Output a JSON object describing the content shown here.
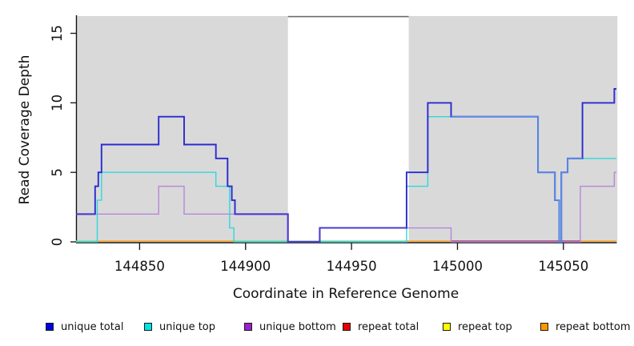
{
  "chart_data": {
    "type": "line",
    "step": true,
    "title": "",
    "xlabel": "Coordinate in Reference Genome",
    "ylabel": "Read Coverage Depth",
    "xlim": [
      144820,
      145075
    ],
    "ylim": [
      0,
      16.3
    ],
    "x_ticks": [
      144850,
      144900,
      144950,
      145000,
      145050
    ],
    "y_ticks": [
      0,
      5,
      10,
      15
    ],
    "grid": false,
    "legend_position": "bottom",
    "shaded_regions": [
      {
        "from": 144820.5,
        "to": 144920,
        "color": "#d9d9d9"
      },
      {
        "from": 144977,
        "to": 145075.5,
        "color": "#d9d9d9"
      }
    ],
    "gap_top_edge": {
      "from": 144920,
      "to": 144977,
      "color": "#6e6e6e"
    },
    "series": [
      {
        "name": "unique total",
        "legend_color": "#0000e1",
        "line_color": "#2a2ad0",
        "line_width": 1.9,
        "draw": true,
        "steps": [
          [
            144820,
            2
          ],
          [
            144829,
            4
          ],
          [
            144830.5,
            5
          ],
          [
            144832,
            7
          ],
          [
            144859,
            9
          ],
          [
            144871,
            7
          ],
          [
            144886,
            6
          ],
          [
            144891.5,
            4
          ],
          [
            144893.5,
            3
          ],
          [
            144895,
            2
          ],
          [
            144920,
            0
          ],
          [
            144935,
            1
          ],
          [
            144976,
            5
          ],
          [
            144986,
            10
          ],
          [
            144997,
            9
          ],
          [
            145038,
            5
          ],
          [
            145046,
            3
          ],
          [
            145048,
            0
          ],
          [
            145049,
            5
          ],
          [
            145052,
            6
          ],
          [
            145059,
            10
          ],
          [
            145074,
            11
          ]
        ],
        "end": 145075
      },
      {
        "name": "unique top",
        "legend_color": "#00e3e3",
        "line_color": "#2fd8dc",
        "line_width": 1.4,
        "draw": true,
        "steps": [
          [
            144820,
            0
          ],
          [
            144830,
            3
          ],
          [
            144832,
            5
          ],
          [
            144886,
            4
          ],
          [
            144892.5,
            1
          ],
          [
            144894.5,
            0
          ],
          [
            144976,
            4
          ],
          [
            144986,
            9
          ],
          [
            145038,
            5
          ],
          [
            145046,
            3
          ],
          [
            145048,
            0
          ],
          [
            145049,
            5
          ],
          [
            145052,
            6
          ]
        ],
        "end": 145075
      },
      {
        "name": "unique bottom",
        "legend_color": "#9b20cf",
        "line_color": "#b687d9",
        "line_width": 1.4,
        "draw": true,
        "steps": [
          [
            144820,
            2
          ],
          [
            144859,
            4
          ],
          [
            144871,
            2
          ],
          [
            144920,
            0
          ],
          [
            144935,
            1
          ],
          [
            144997,
            0
          ],
          [
            145058,
            4
          ],
          [
            145074,
            5
          ]
        ],
        "end": 145075
      },
      {
        "name": "repeat total",
        "legend_color": "#e60000",
        "line_color": "#e60000",
        "line_width": 1.4,
        "draw": false,
        "steps": [
          [
            144820,
            0
          ]
        ],
        "end": 145075
      },
      {
        "name": "repeat top",
        "legend_color": "#ffff00",
        "line_color": "#ffff00",
        "line_width": 1.4,
        "draw": false,
        "steps": [
          [
            144820,
            0
          ]
        ],
        "end": 145075
      },
      {
        "name": "repeat bottom",
        "legend_color": "#ff9900",
        "line_color": "#ffa020",
        "line_width": 1.4,
        "draw": false,
        "steps": [
          [
            144820,
            0
          ]
        ],
        "end": 145075
      }
    ],
    "baseline_segments": [
      {
        "from": 144820,
        "to": 144830,
        "color": "#93cf93",
        "note": "unique top + repeat lines overlap at 0"
      },
      {
        "from": 144830,
        "to": 144895,
        "color": "#ffa020",
        "note": "repeat bottom at 0"
      },
      {
        "from": 144895,
        "to": 144976,
        "color": "#93cf93",
        "note": "unique top + repeat lines overlap at 0"
      },
      {
        "from": 144976,
        "to": 144997,
        "color": "#ffa020",
        "note": "repeat bottom at 0"
      },
      {
        "from": 144997,
        "to": 145058,
        "color": "#ab3a68",
        "note": "unique bottom + repeat total overlap at 0"
      },
      {
        "from": 145058,
        "to": 145075,
        "color": "#ffa020",
        "note": "repeat bottom at 0"
      }
    ],
    "overlap_segments": [
      {
        "color": "#4b3ad2",
        "width": 1.9,
        "note": "unique total + unique bottom coincide",
        "steps": [
          [
            144820,
            2
          ]
        ],
        "end": 144829
      },
      {
        "color": "#4b3ad2",
        "width": 1.9,
        "note": "unique total + unique bottom coincide",
        "steps": [
          [
            144895,
            2
          ],
          [
            144920,
            0
          ],
          [
            144935,
            1
          ]
        ],
        "end": 144976
      },
      {
        "color": "#5589e6",
        "width": 1.9,
        "note": "unique total + unique top coincide",
        "steps": [
          [
            144997,
            9
          ],
          [
            145038,
            5
          ],
          [
            145046,
            3
          ],
          [
            145048,
            0
          ],
          [
            145049,
            5
          ],
          [
            145052,
            6
          ]
        ],
        "end": 145059
      }
    ]
  }
}
